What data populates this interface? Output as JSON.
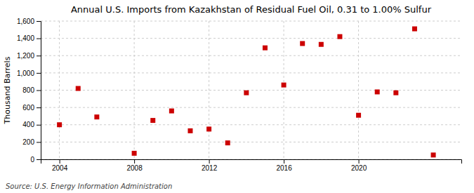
{
  "chart_data": {
    "type": "scatter",
    "title": "Annual U.S. Imports from Kazakhstan of Residual Fuel Oil, 0.31 to 1.00% Sulfur",
    "ylabel": "Thousand Barrels",
    "source": "Source: U.S. Energy Information Administration",
    "x": [
      2004,
      2005,
      2006,
      2008,
      2009,
      2010,
      2011,
      2012,
      2013,
      2014,
      2015,
      2016,
      2017,
      2018,
      2019,
      2020,
      2021,
      2022,
      2023,
      2024
    ],
    "values": [
      400,
      820,
      490,
      70,
      450,
      560,
      330,
      350,
      190,
      770,
      1290,
      860,
      1340,
      1330,
      1420,
      510,
      780,
      770,
      1510,
      50
    ],
    "color": "#cc0000",
    "marker": "square",
    "grid": true,
    "xlim": [
      2003,
      2025.5
    ],
    "xticks": [
      2004,
      2008,
      2012,
      2016,
      2020
    ],
    "ylim": [
      0,
      1600
    ],
    "yticks": [
      0,
      200,
      400,
      600,
      800,
      {
        "value": 1000,
        "label": "1,000"
      },
      {
        "value": 1200,
        "label": "1,200"
      },
      {
        "value": 1400,
        "label": "1,400"
      },
      {
        "value": 1600,
        "label": "1,600"
      }
    ]
  }
}
